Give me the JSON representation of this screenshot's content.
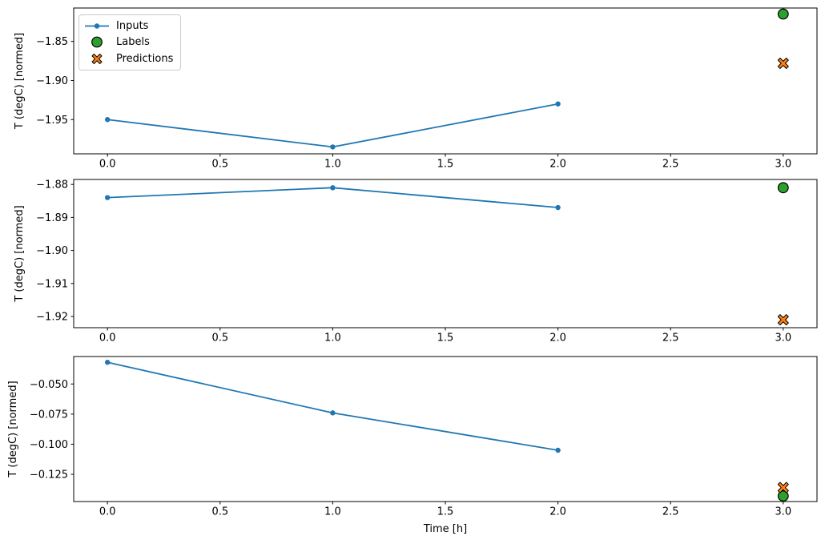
{
  "figure": {
    "xlabel": "Time [h]",
    "ylabel": "T (degC) [normed]",
    "background": "#ffffff",
    "colors": {
      "inputs": "#1f77b4",
      "labels": "#2ca02c",
      "predictions": "#ff7f0e",
      "marker_edge": "#000000",
      "axis": "#000000",
      "text": "#000000",
      "legend_border": "#cccccc"
    },
    "legend": {
      "position": "upper left of first subplot",
      "entries": [
        {
          "label": "Inputs",
          "marker": "line-dot",
          "key": "inputs"
        },
        {
          "label": "Labels",
          "marker": "circle",
          "key": "labels"
        },
        {
          "label": "Predictions",
          "marker": "x-cross",
          "key": "predictions"
        }
      ]
    }
  },
  "chart_data": [
    {
      "type": "line",
      "subplot": 1,
      "title": "",
      "xlabel": "",
      "ylabel": "T (degC) [normed]",
      "grid": false,
      "xlim": [
        -0.15,
        3.15
      ],
      "ylim": [
        -1.9938,
        -1.8073
      ],
      "xticks": [
        0.0,
        0.5,
        1.0,
        1.5,
        2.0,
        2.5,
        3.0
      ],
      "xtick_labels": [
        "0.0",
        "0.5",
        "1.0",
        "1.5",
        "2.0",
        "2.5",
        "3.0"
      ],
      "yticks": [
        -1.85,
        -1.9,
        -1.95
      ],
      "ytick_labels": [
        "−1.85",
        "−1.90",
        "−1.95"
      ],
      "series": [
        {
          "name": "Inputs",
          "key": "inputs",
          "type": "line",
          "marker": "dot",
          "x": [
            0,
            1,
            2
          ],
          "y": [
            -1.95,
            -1.985,
            -1.93
          ]
        },
        {
          "name": "Labels",
          "key": "labels",
          "type": "scatter",
          "marker": "circle",
          "x": [
            3
          ],
          "y": [
            -1.815
          ]
        },
        {
          "name": "Predictions",
          "key": "predictions",
          "type": "scatter",
          "marker": "x-cross",
          "x": [
            3
          ],
          "y": [
            -1.878
          ]
        }
      ]
    },
    {
      "type": "line",
      "subplot": 2,
      "title": "",
      "xlabel": "",
      "ylabel": "T (degC) [normed]",
      "grid": false,
      "xlim": [
        -0.15,
        3.15
      ],
      "ylim": [
        -1.9234,
        -1.8785
      ],
      "xticks": [
        0.0,
        0.5,
        1.0,
        1.5,
        2.0,
        2.5,
        3.0
      ],
      "xtick_labels": [
        "0.0",
        "0.5",
        "1.0",
        "1.5",
        "2.0",
        "2.5",
        "3.0"
      ],
      "yticks": [
        -1.88,
        -1.89,
        -1.9,
        -1.91,
        -1.92
      ],
      "ytick_labels": [
        "−1.88",
        "−1.89",
        "−1.90",
        "−1.91",
        "−1.92"
      ],
      "series": [
        {
          "name": "Inputs",
          "key": "inputs",
          "type": "line",
          "marker": "dot",
          "x": [
            0,
            1,
            2
          ],
          "y": [
            -1.884,
            -1.881,
            -1.887
          ]
        },
        {
          "name": "Labels",
          "key": "labels",
          "type": "scatter",
          "marker": "circle",
          "x": [
            3
          ],
          "y": [
            -1.881
          ]
        },
        {
          "name": "Predictions",
          "key": "predictions",
          "type": "scatter",
          "marker": "x-cross",
          "x": [
            3
          ],
          "y": [
            -1.921
          ]
        }
      ]
    },
    {
      "type": "line",
      "subplot": 3,
      "title": "",
      "xlabel": "Time [h]",
      "ylabel": "T (degC) [normed]",
      "grid": false,
      "xlim": [
        -0.15,
        3.15
      ],
      "ylim": [
        -0.1476,
        -0.0272
      ],
      "xticks": [
        0.0,
        0.5,
        1.0,
        1.5,
        2.0,
        2.5,
        3.0
      ],
      "xtick_labels": [
        "0.0",
        "0.5",
        "1.0",
        "1.5",
        "2.0",
        "2.5",
        "3.0"
      ],
      "yticks": [
        -0.05,
        -0.075,
        -0.1,
        -0.125
      ],
      "ytick_labels": [
        "−0.050",
        "−0.075",
        "−0.100",
        "−0.125"
      ],
      "series": [
        {
          "name": "Inputs",
          "key": "inputs",
          "type": "line",
          "marker": "dot",
          "x": [
            0,
            1,
            2
          ],
          "y": [
            -0.032,
            -0.074,
            -0.105
          ]
        },
        {
          "name": "Labels",
          "key": "labels",
          "type": "scatter",
          "marker": "circle",
          "x": [
            3
          ],
          "y": [
            -0.143
          ]
        },
        {
          "name": "Predictions",
          "key": "predictions",
          "type": "scatter",
          "marker": "x-cross",
          "x": [
            3
          ],
          "y": [
            -0.136
          ]
        }
      ]
    }
  ]
}
